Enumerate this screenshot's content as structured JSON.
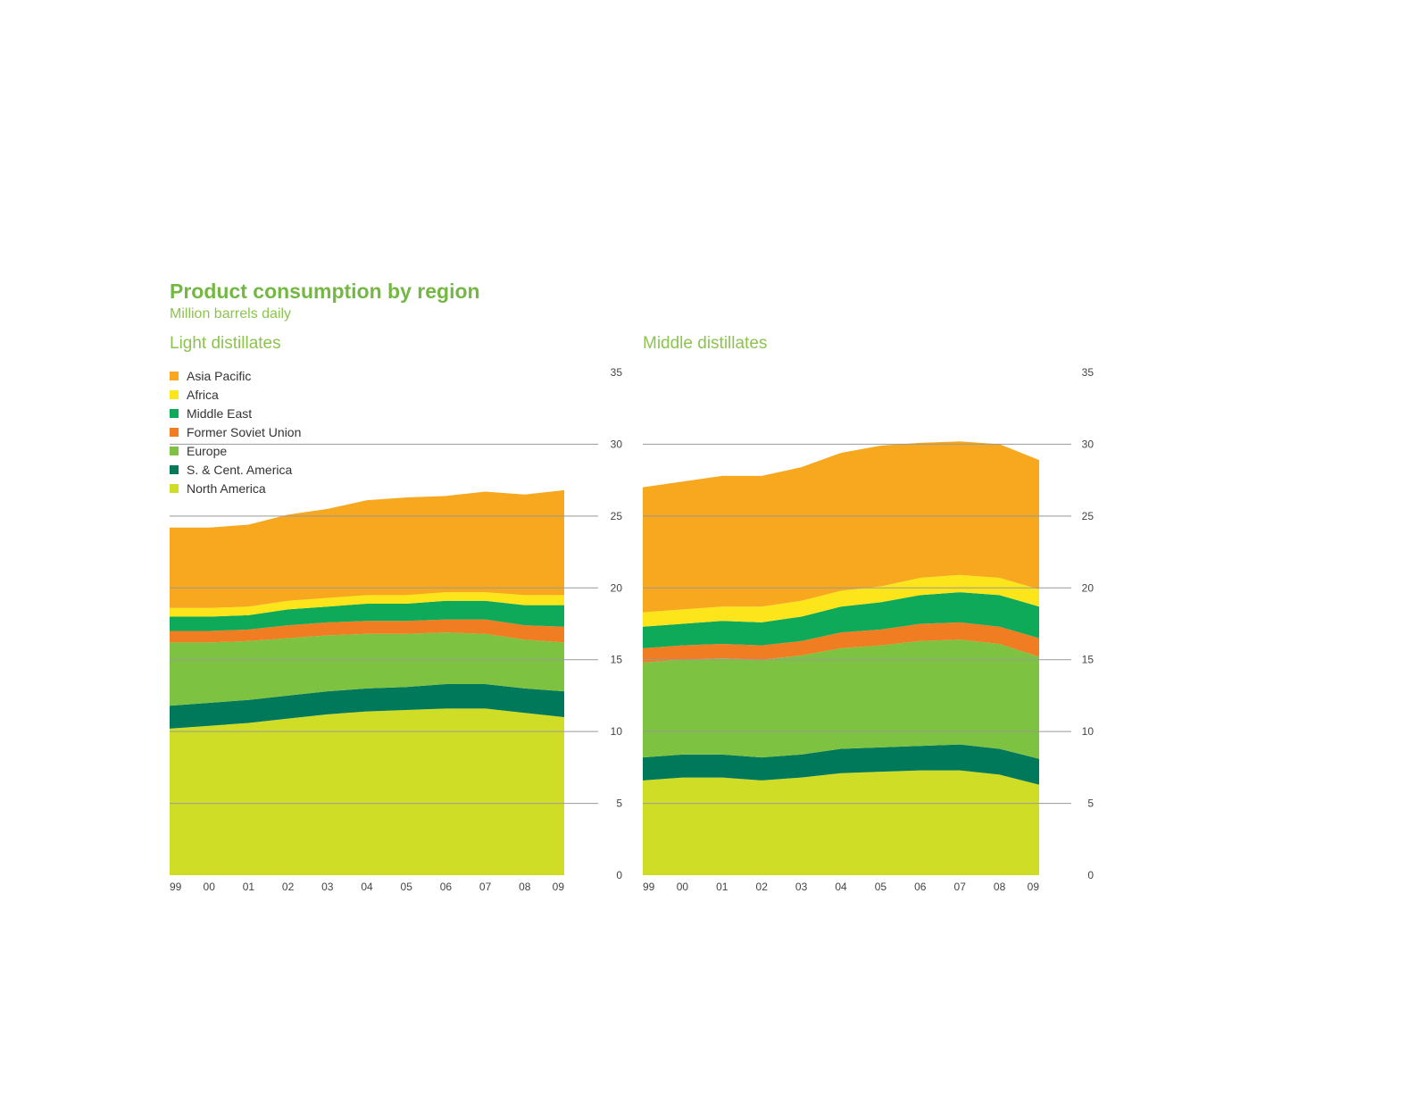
{
  "header": {
    "title": "Product consumption by region",
    "subtitle": "Million barrels daily"
  },
  "colors": {
    "Asia Pacific": "#f7a81e",
    "Africa": "#fce51a",
    "Middle East": "#0eaa5a",
    "Former Soviet Union": "#f07d22",
    "Europe": "#7ec242",
    "S. & Cent. America": "#00785a",
    "North America": "#d0dd27",
    "gridline": "#999999"
  },
  "chart_data": [
    {
      "type": "area",
      "title": "Light distillates",
      "x": [
        "99",
        "00",
        "01",
        "02",
        "03",
        "04",
        "05",
        "06",
        "07",
        "08",
        "09"
      ],
      "ylim": [
        0,
        35
      ],
      "yticks": [
        0,
        5,
        10,
        15,
        20,
        25,
        30,
        35
      ],
      "grid": true,
      "legend": "top-left",
      "stacked": true,
      "series": [
        {
          "name": "North America",
          "values": [
            10.2,
            10.4,
            10.6,
            10.9,
            11.2,
            11.4,
            11.5,
            11.6,
            11.6,
            11.3,
            11.0
          ]
        },
        {
          "name": "S. & Cent. America",
          "values": [
            1.6,
            1.6,
            1.6,
            1.6,
            1.6,
            1.6,
            1.6,
            1.7,
            1.7,
            1.7,
            1.8
          ]
        },
        {
          "name": "Europe",
          "values": [
            4.4,
            4.2,
            4.1,
            4.0,
            3.9,
            3.8,
            3.7,
            3.6,
            3.5,
            3.4,
            3.4
          ]
        },
        {
          "name": "Former Soviet Union",
          "values": [
            0.8,
            0.8,
            0.8,
            0.9,
            0.9,
            0.9,
            0.9,
            0.9,
            1.0,
            1.0,
            1.1
          ]
        },
        {
          "name": "Middle East",
          "values": [
            1.0,
            1.0,
            1.0,
            1.1,
            1.1,
            1.2,
            1.2,
            1.3,
            1.3,
            1.4,
            1.5
          ]
        },
        {
          "name": "Africa",
          "values": [
            0.6,
            0.6,
            0.6,
            0.6,
            0.6,
            0.6,
            0.6,
            0.6,
            0.6,
            0.7,
            0.7
          ]
        },
        {
          "name": "Asia Pacific",
          "values": [
            5.6,
            5.6,
            5.7,
            6.0,
            6.2,
            6.6,
            6.8,
            6.7,
            7.0,
            7.0,
            7.3
          ]
        }
      ]
    },
    {
      "type": "area",
      "title": "Middle distillates",
      "x": [
        "99",
        "00",
        "01",
        "02",
        "03",
        "04",
        "05",
        "06",
        "07",
        "08",
        "09"
      ],
      "ylim": [
        0,
        35
      ],
      "yticks": [
        0,
        5,
        10,
        15,
        20,
        25,
        30,
        35
      ],
      "grid": true,
      "stacked": true,
      "series": [
        {
          "name": "North America",
          "values": [
            6.6,
            6.8,
            6.8,
            6.6,
            6.8,
            7.1,
            7.2,
            7.3,
            7.3,
            7.0,
            6.3
          ]
        },
        {
          "name": "S. & Cent. America",
          "values": [
            1.6,
            1.6,
            1.6,
            1.6,
            1.6,
            1.7,
            1.7,
            1.7,
            1.8,
            1.8,
            1.8
          ]
        },
        {
          "name": "Europe",
          "values": [
            6.6,
            6.6,
            6.7,
            6.8,
            6.9,
            7.0,
            7.1,
            7.3,
            7.3,
            7.3,
            7.1
          ]
        },
        {
          "name": "Former Soviet Union",
          "values": [
            1.0,
            1.0,
            1.0,
            1.0,
            1.0,
            1.1,
            1.1,
            1.2,
            1.2,
            1.2,
            1.3
          ]
        },
        {
          "name": "Middle East",
          "values": [
            1.5,
            1.5,
            1.6,
            1.6,
            1.7,
            1.8,
            1.9,
            2.0,
            2.1,
            2.2,
            2.2
          ]
        },
        {
          "name": "Africa",
          "values": [
            1.0,
            1.0,
            1.0,
            1.1,
            1.1,
            1.1,
            1.1,
            1.2,
            1.2,
            1.2,
            1.2
          ]
        },
        {
          "name": "Asia Pacific",
          "values": [
            8.7,
            8.9,
            9.1,
            9.1,
            9.3,
            9.6,
            9.8,
            9.4,
            9.3,
            9.3,
            9.0
          ]
        }
      ]
    }
  ]
}
